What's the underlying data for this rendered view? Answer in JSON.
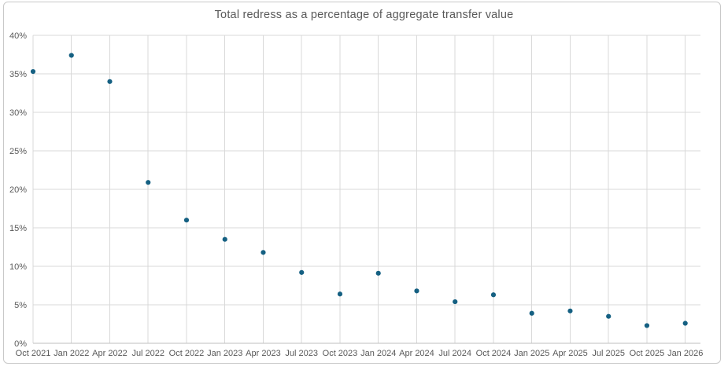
{
  "chart_data": {
    "type": "scatter",
    "title": "Total redress as a percentage of aggregate transfer value",
    "categories": [
      "Oct 2021",
      "Jan 2022",
      "Apr 2022",
      "Jul 2022",
      "Oct 2022",
      "Jan 2023",
      "Apr 2023",
      "Jul 2023",
      "Oct 2023",
      "Jan 2024",
      "Apr 2024",
      "Jul 2024",
      "Oct 2024",
      "Jan 2025",
      "Apr 2025",
      "Jul 2025",
      "Oct 2025",
      "Jan 2026"
    ],
    "values": [
      35.3,
      37.4,
      34.0,
      20.9,
      16.0,
      13.5,
      11.8,
      9.2,
      6.4,
      9.1,
      6.8,
      5.4,
      6.3,
      3.9,
      4.2,
      3.5,
      2.3,
      2.6
    ],
    "xlabel": "",
    "ylabel": "",
    "ylim": [
      0,
      40
    ],
    "yticks": [
      0,
      5,
      10,
      15,
      20,
      25,
      30,
      35,
      40
    ],
    "ytick_labels": [
      "0%",
      "5%",
      "10%",
      "15%",
      "20%",
      "25%",
      "30%",
      "35%",
      "40%"
    ],
    "grid": true,
    "legend": false,
    "colors": {
      "point": "#156082",
      "gridline": "#d9d9d9",
      "axis_line": "#bfbfbf",
      "tick_label": "#595959",
      "title": "#595959",
      "frame_border": "#c9c9c9",
      "background": "#ffffff"
    }
  }
}
